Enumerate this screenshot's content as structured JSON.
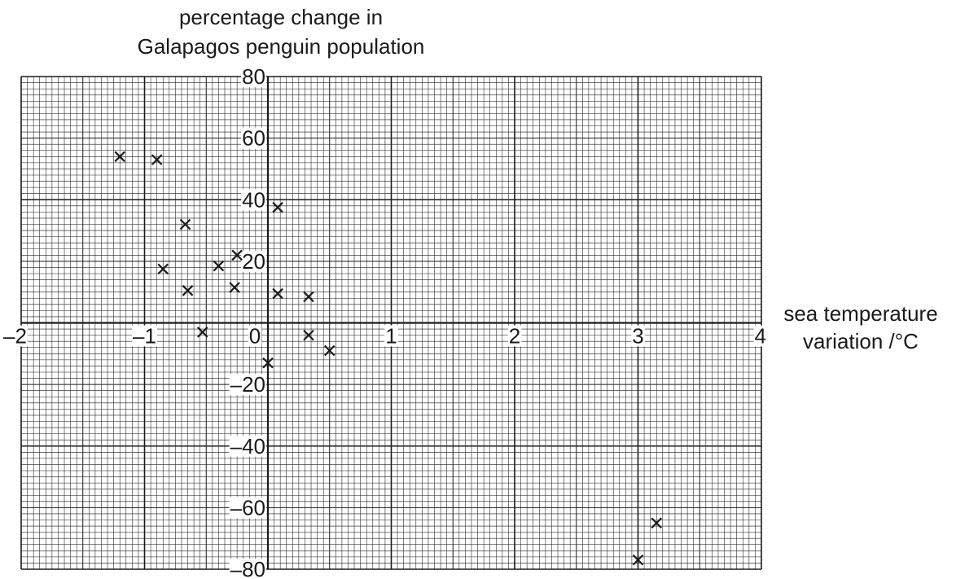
{
  "chart_data": {
    "type": "scatter",
    "title": "",
    "ylabel_lines": [
      "percentage change in",
      "Galapagos penguin population"
    ],
    "xlabel_lines": [
      "sea temperature",
      "variation /°C"
    ],
    "xlim": [
      -2,
      4
    ],
    "ylim": [
      -80,
      80
    ],
    "x_ticks": [
      -2,
      -1,
      0,
      1,
      2,
      3,
      4
    ],
    "y_ticks": [
      80,
      60,
      40,
      20,
      -20,
      -40,
      -60,
      -80
    ],
    "x_tick_labels": [
      "–2",
      "–1",
      "0",
      "1",
      "2",
      "3",
      "4"
    ],
    "y_tick_labels": [
      "80",
      "60",
      "40",
      "20",
      "–20",
      "–40",
      "–60",
      "–80"
    ],
    "grid": true,
    "marker": "x",
    "points": [
      {
        "x": -1.2,
        "y": 54
      },
      {
        "x": -0.9,
        "y": 53
      },
      {
        "x": -0.67,
        "y": 32
      },
      {
        "x": -0.85,
        "y": 17.5
      },
      {
        "x": -0.65,
        "y": 10.5
      },
      {
        "x": -0.4,
        "y": 18.5
      },
      {
        "x": -0.25,
        "y": 22
      },
      {
        "x": -0.27,
        "y": 11.5
      },
      {
        "x": -0.53,
        "y": -3
      },
      {
        "x": 0.08,
        "y": 37.5
      },
      {
        "x": 0.08,
        "y": 9.5
      },
      {
        "x": 0.33,
        "y": 8.5
      },
      {
        "x": 0.33,
        "y": -4
      },
      {
        "x": 0.5,
        "y": -9
      },
      {
        "x": 0,
        "y": -13
      },
      {
        "x": 3,
        "y": -77
      },
      {
        "x": 3.15,
        "y": -65
      }
    ]
  }
}
